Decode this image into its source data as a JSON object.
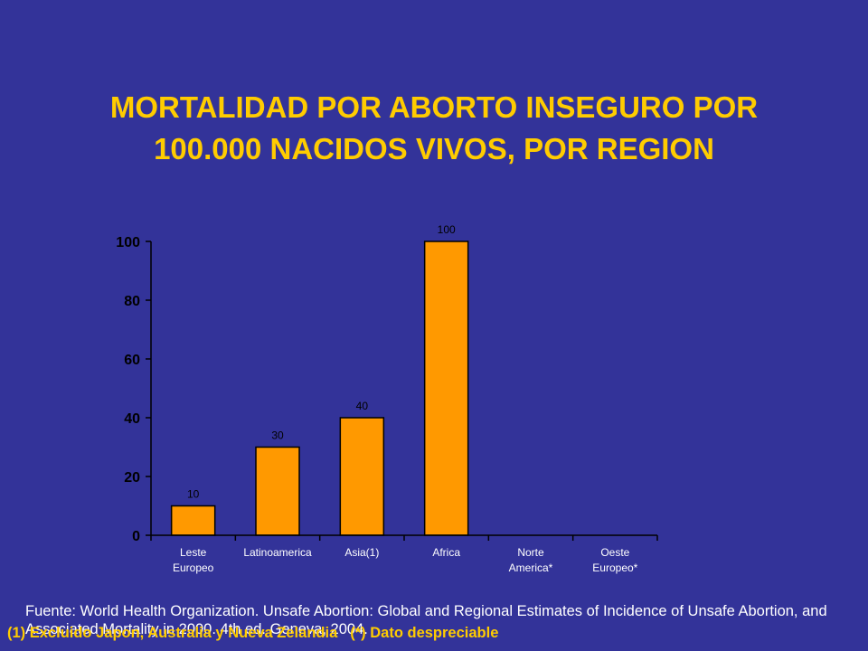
{
  "slide": {
    "title_line1": "MORTALIDAD POR ABORTO INSEGURO POR",
    "title_line2": "100.000 NACIDOS VIVOS, POR REGION",
    "source": "Fuente: World Health Organization. Unsafe Abortion: Global and Regional Estimates of Incidence of Unsafe Abortion, and Associated Mortality in 2000. 4th ed. Geneva, 2004.",
    "note_1": "(1) Excluido Japon, Australia y Nueva Zelandia",
    "note_2": "(*) Dato despreciable"
  },
  "colors": {
    "background": "#333399",
    "bar_fill": "#ff9900",
    "title": "#ffcc00",
    "axis": "#000000"
  },
  "chart_data": {
    "type": "bar",
    "categories": [
      [
        "Leste",
        "Europeo"
      ],
      [
        "Latinoamerica"
      ],
      [
        "Asia(1)"
      ],
      [
        "Africa"
      ],
      [
        "Norte",
        "America*"
      ],
      [
        "Oeste",
        "Europeo*"
      ]
    ],
    "values": [
      10,
      30,
      40,
      100,
      0,
      0
    ],
    "data_labels": [
      "10",
      "30",
      "40",
      "100",
      "",
      ""
    ],
    "ylim": [
      0,
      100
    ],
    "yticks": [
      0,
      20,
      40,
      60,
      80,
      100
    ],
    "ytick_labels": [
      "0",
      "20",
      "40",
      "60",
      "80",
      "100"
    ],
    "grid": false,
    "legend": "none"
  }
}
